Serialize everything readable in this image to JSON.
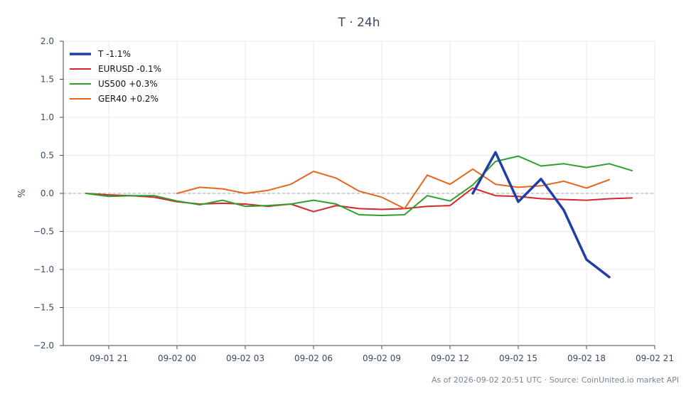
{
  "chart_data": {
    "type": "line",
    "title": "T · 24h",
    "xlabel": "",
    "ylabel": "%",
    "x_ticks": [
      "09-01 21",
      "09-02 00",
      "09-02 03",
      "09-02 06",
      "09-02 09",
      "09-02 12",
      "09-02 15",
      "09-02 18",
      "09-02 21"
    ],
    "y_ticks": [
      "2.0",
      "1.5",
      "1.0",
      "0.5",
      "0.0",
      "−0.5",
      "−1.0",
      "−1.5",
      "−2.0"
    ],
    "ylim": [
      -2.0,
      2.0
    ],
    "xlim": [
      "2026-09-01 19:00",
      "2026-09-02 21:00"
    ],
    "grid": true,
    "zero_line": true,
    "legend_position": "top-left",
    "series": [
      {
        "name": "T -1.1%",
        "color": "#1f3fa6",
        "emphasis": true,
        "x": [
          "2026-09-02 13:00",
          "2026-09-02 14:00",
          "2026-09-02 15:00",
          "2026-09-02 16:00",
          "2026-09-02 17:00",
          "2026-09-02 18:00",
          "2026-09-02 19:00"
        ],
        "values": [
          0.0,
          0.54,
          -0.11,
          0.19,
          -0.22,
          -0.87,
          -1.1
        ]
      },
      {
        "name": "EURUSD -0.1%",
        "color": "#d62728",
        "x": [
          "2026-09-01 20:00",
          "2026-09-01 21:00",
          "2026-09-01 22:00",
          "2026-09-01 23:00",
          "2026-09-02 00:00",
          "2026-09-02 01:00",
          "2026-09-02 02:00",
          "2026-09-02 03:00",
          "2026-09-02 04:00",
          "2026-09-02 05:00",
          "2026-09-02 06:00",
          "2026-09-02 07:00",
          "2026-09-02 08:00",
          "2026-09-02 09:00",
          "2026-09-02 10:00",
          "2026-09-02 11:00",
          "2026-09-02 12:00",
          "2026-09-02 13:00",
          "2026-09-02 14:00",
          "2026-09-02 15:00",
          "2026-09-02 16:00",
          "2026-09-02 17:00",
          "2026-09-02 18:00",
          "2026-09-02 19:00",
          "2026-09-02 20:00"
        ],
        "values": [
          0.0,
          -0.02,
          -0.03,
          -0.05,
          -0.11,
          -0.14,
          -0.13,
          -0.14,
          -0.17,
          -0.14,
          -0.24,
          -0.16,
          -0.2,
          -0.21,
          -0.2,
          -0.17,
          -0.16,
          0.07,
          -0.03,
          -0.04,
          -0.07,
          -0.08,
          -0.09,
          -0.07,
          -0.06
        ]
      },
      {
        "name": "US500 +0.3%",
        "color": "#2ca02c",
        "x": [
          "2026-09-01 20:00",
          "2026-09-01 21:00",
          "2026-09-01 22:00",
          "2026-09-01 23:00",
          "2026-09-02 00:00",
          "2026-09-02 01:00",
          "2026-09-02 02:00",
          "2026-09-02 03:00",
          "2026-09-02 04:00",
          "2026-09-02 05:00",
          "2026-09-02 06:00",
          "2026-09-02 07:00",
          "2026-09-02 08:00",
          "2026-09-02 09:00",
          "2026-09-02 10:00",
          "2026-09-02 11:00",
          "2026-09-02 12:00",
          "2026-09-02 13:00",
          "2026-09-02 14:00",
          "2026-09-02 15:00",
          "2026-09-02 16:00",
          "2026-09-02 17:00",
          "2026-09-02 18:00",
          "2026-09-02 19:00",
          "2026-09-02 20:00"
        ],
        "values": [
          0.0,
          -0.04,
          -0.03,
          -0.03,
          -0.1,
          -0.15,
          -0.09,
          -0.17,
          -0.16,
          -0.14,
          -0.09,
          -0.14,
          -0.28,
          -0.29,
          -0.28,
          -0.03,
          -0.1,
          0.11,
          0.42,
          0.49,
          0.36,
          0.39,
          0.34,
          0.39,
          0.3
        ]
      },
      {
        "name": "GER40 +0.2%",
        "color": "#e8661c",
        "x": [
          "2026-09-02 00:00",
          "2026-09-02 01:00",
          "2026-09-02 02:00",
          "2026-09-02 03:00",
          "2026-09-02 04:00",
          "2026-09-02 05:00",
          "2026-09-02 06:00",
          "2026-09-02 07:00",
          "2026-09-02 08:00",
          "2026-09-02 09:00",
          "2026-09-02 10:00",
          "2026-09-02 11:00",
          "2026-09-02 12:00",
          "2026-09-02 13:00",
          "2026-09-02 14:00",
          "2026-09-02 15:00",
          "2026-09-02 16:00",
          "2026-09-02 17:00",
          "2026-09-02 18:00",
          "2026-09-02 19:00"
        ],
        "values": [
          0.0,
          0.08,
          0.06,
          0.0,
          0.04,
          0.12,
          0.29,
          0.2,
          0.03,
          -0.05,
          -0.2,
          0.24,
          0.12,
          0.32,
          0.12,
          0.08,
          0.1,
          0.16,
          0.07,
          0.18
        ]
      }
    ],
    "footer": "As of 2026-09-02 20:51 UTC · Source: CoinUnited.io market API"
  }
}
